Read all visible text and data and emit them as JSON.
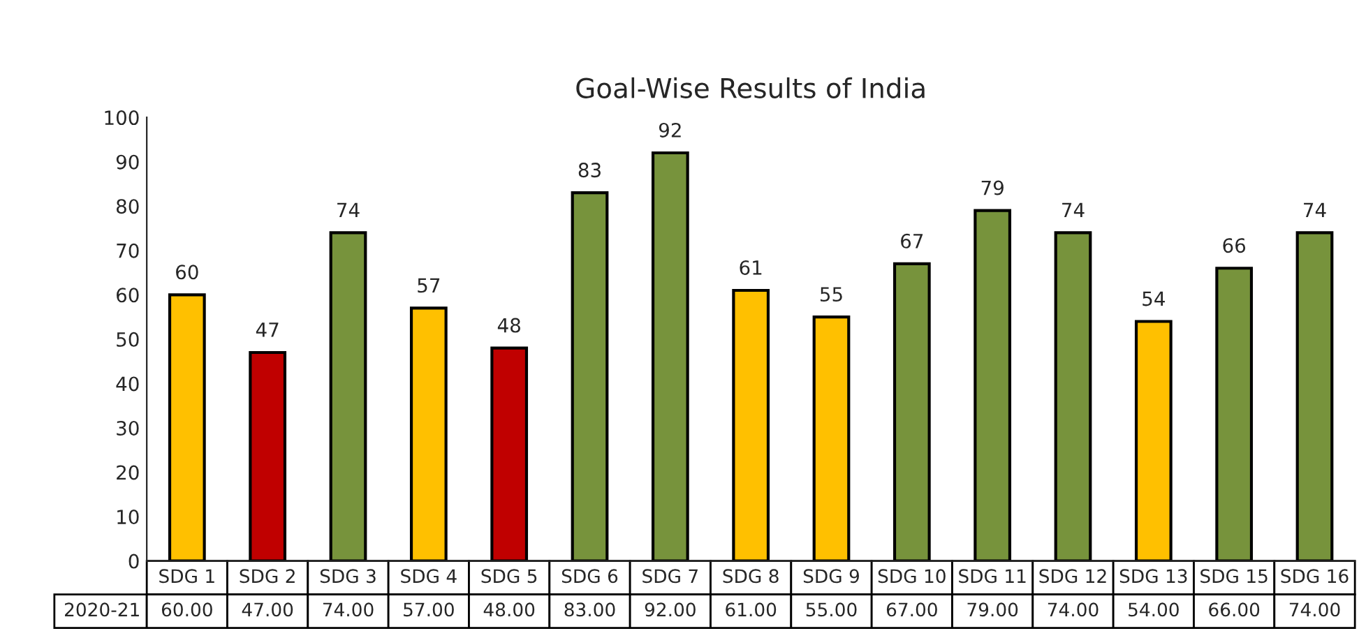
{
  "chart_data": {
    "type": "bar",
    "title": "Goal-Wise Results of India",
    "categories": [
      "SDG 1",
      "SDG 2",
      "SDG 3",
      "SDG 4",
      "SDG 5",
      "SDG 6",
      "SDG 7",
      "SDG 8",
      "SDG 9",
      "SDG 10",
      "SDG 11",
      "SDG 12",
      "SDG 13",
      "SDG 15",
      "SDG 16"
    ],
    "series": [
      {
        "name": "2020-21",
        "values": [
          60,
          47,
          74,
          57,
          48,
          83,
          92,
          61,
          55,
          67,
          79,
          74,
          54,
          66,
          74
        ],
        "colors": [
          "#ffc000",
          "#c00000",
          "#77933c",
          "#ffc000",
          "#c00000",
          "#77933c",
          "#77933c",
          "#ffc000",
          "#ffc000",
          "#77933c",
          "#77933c",
          "#77933c",
          "#ffc000",
          "#77933c",
          "#77933c"
        ],
        "value_labels": [
          "60",
          "47",
          "74",
          "57",
          "48",
          "83",
          "92",
          "61",
          "55",
          "67",
          "79",
          "74",
          "54",
          "66",
          "74"
        ]
      }
    ],
    "ylim": [
      0,
      100
    ],
    "yticks": [
      0,
      10,
      20,
      30,
      40,
      50,
      60,
      70,
      80,
      90,
      100
    ],
    "annotations": [
      "60.00",
      "47.00",
      "74.00",
      "57.00",
      "48.00",
      "83.00",
      "92.00",
      "61.00",
      "55.00",
      "67.00",
      "79.00",
      "74.00",
      "54.00",
      "66.00",
      "74.00"
    ],
    "grid": false,
    "legend": "bottom"
  }
}
